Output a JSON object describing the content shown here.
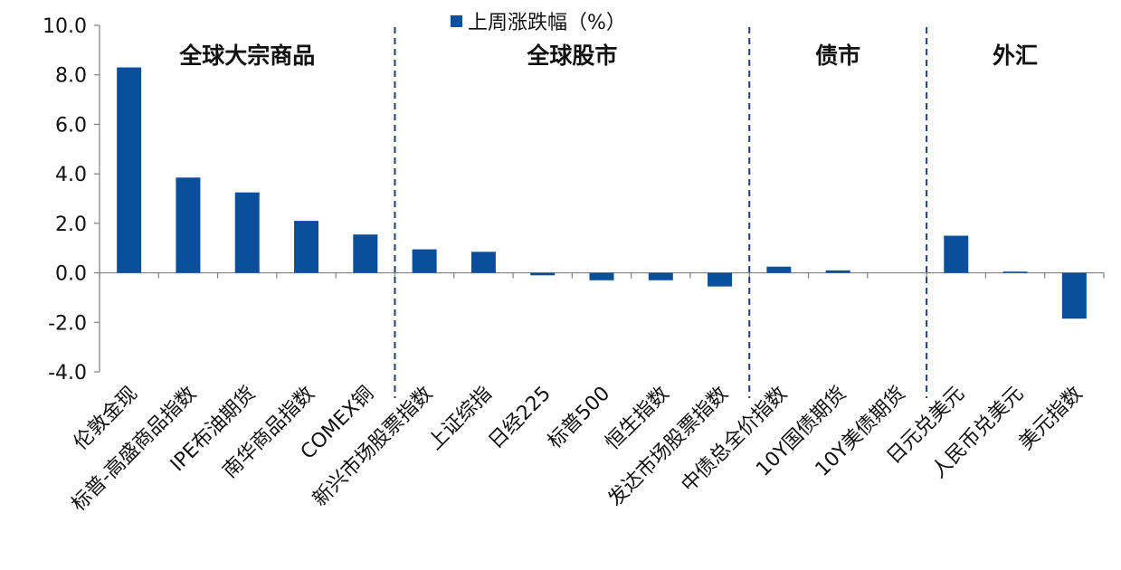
{
  "chart_data": {
    "type": "bar",
    "legend": {
      "label": "上周涨跌幅（%）",
      "placement": "top-center",
      "color": "#0b4f9c"
    },
    "categories": [
      "伦敦金现",
      "标普-高盛商品指数",
      "IPE布油期货",
      "南华商品指数",
      "COMEX铜",
      "新兴市场股票指数",
      "上证综指",
      "日经225",
      "标普500",
      "恒生指数",
      "发达市场股票指数",
      "中债总全价指数",
      "10Y国债期货",
      "10Y美债期货",
      "日元兑美元",
      "人民币兑美元",
      "美元指数"
    ],
    "series": [
      {
        "name": "上周涨跌幅（%）",
        "values": [
          8.3,
          3.85,
          3.25,
          2.1,
          1.55,
          0.95,
          0.85,
          -0.1,
          -0.3,
          -0.3,
          -0.55,
          0.25,
          0.1,
          0.0,
          1.5,
          0.05,
          -1.85
        ]
      }
    ],
    "ylim": [
      -4.0,
      10.0
    ],
    "yticks": [
      "10.0",
      "8.0",
      "6.0",
      "4.0",
      "2.0",
      "0.0",
      "-2.0",
      "-4.0"
    ],
    "ytick_values": [
      10,
      8,
      6,
      4,
      2,
      0,
      -2,
      -4
    ],
    "groups": [
      {
        "label": "全球大宗商品",
        "start": 0,
        "end": 4
      },
      {
        "label": "全球股市",
        "start": 5,
        "end": 10
      },
      {
        "label": "债市",
        "start": 11,
        "end": 13
      },
      {
        "label": "外汇",
        "start": 14,
        "end": 16
      }
    ],
    "bar_color": "#0b4f9c",
    "grid": false
  }
}
